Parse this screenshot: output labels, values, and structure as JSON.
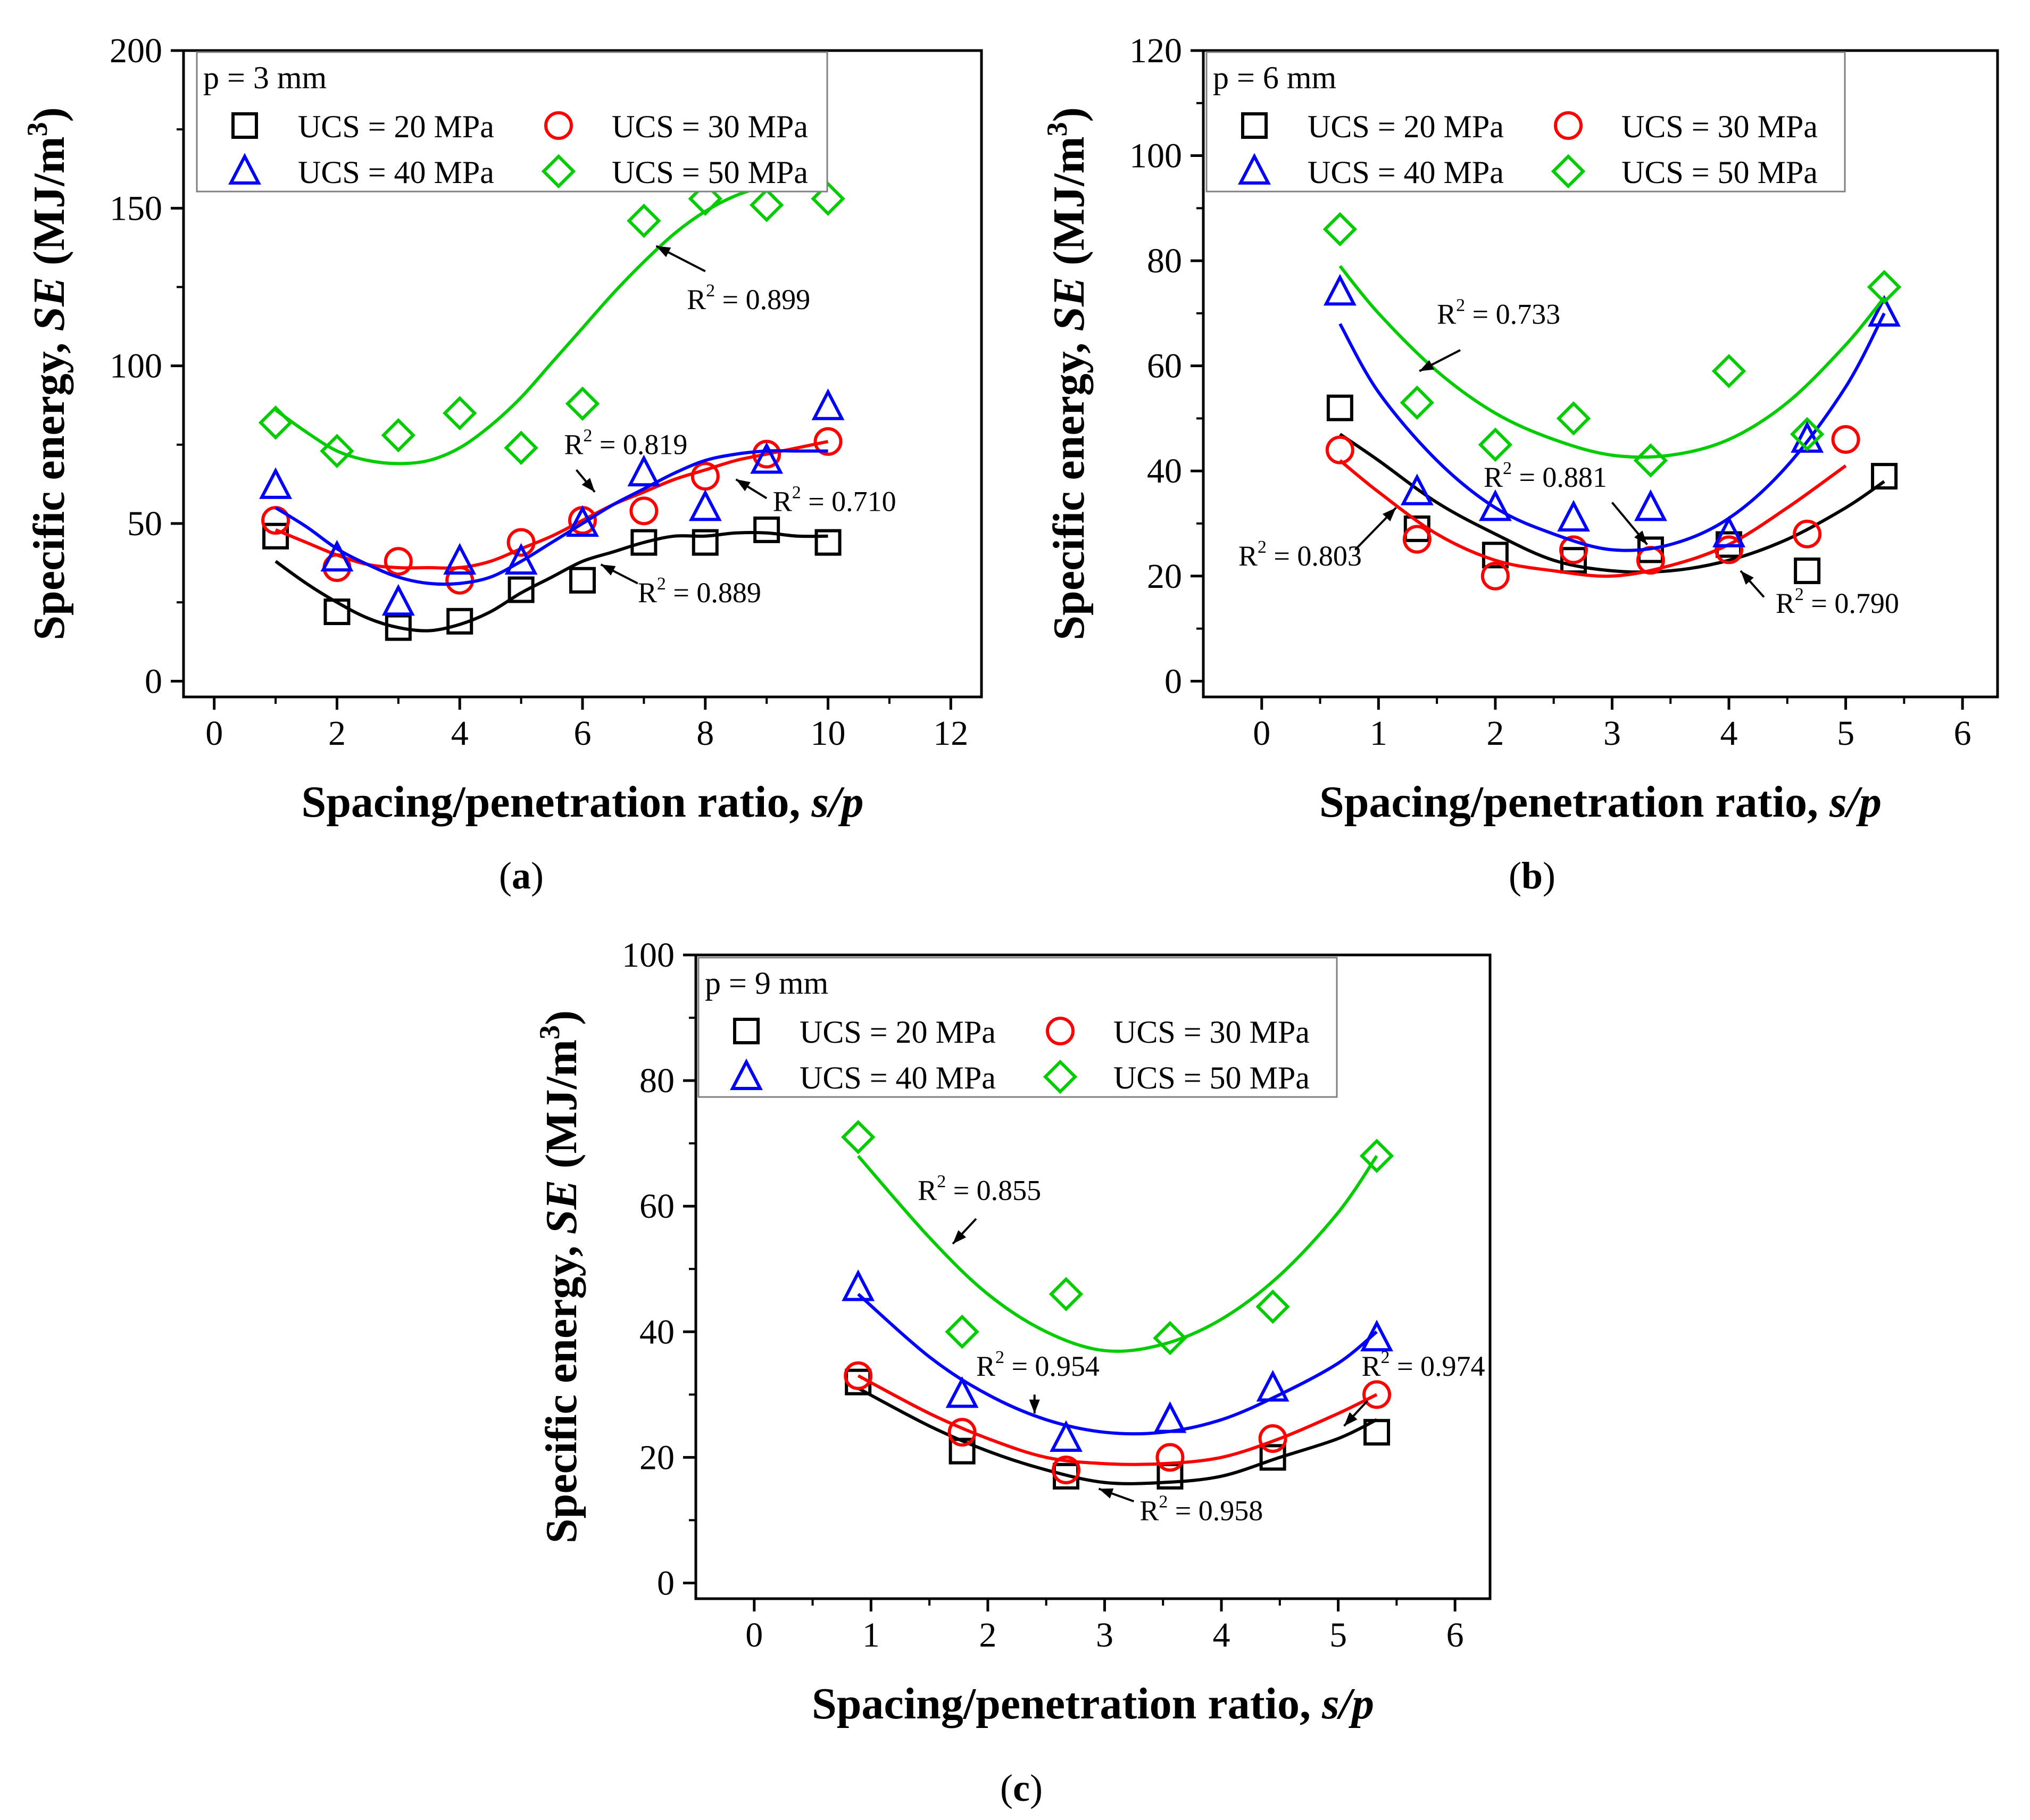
{
  "figure": {
    "y_label_prefix": "Specific energy, ",
    "y_label_italic": "SE",
    "y_label_unit": " (MJ/m",
    "y_label_exp": "3",
    "y_label_close": ")",
    "x_label_prefix": "Spacing/penetration ratio, ",
    "x_label_italic": "s/p"
  },
  "colors": {
    "UCS = 20 MPa": "#000000",
    "UCS = 30 MPa": "#ff0000",
    "UCS = 40 MPa": "#0000ff",
    "UCS = 50 MPa": "#00cc00"
  },
  "chart_data": [
    {
      "type": "scatter",
      "caption": "a",
      "legend_title": "p = 3 mm",
      "xlim": [
        -0.5,
        12.5
      ],
      "ylim": [
        -5,
        200
      ],
      "xticks": [
        0,
        2,
        4,
        6,
        8,
        10,
        12
      ],
      "yticks": [
        0,
        50,
        100,
        150,
        200
      ],
      "series": [
        {
          "name": "UCS = 20 MPa",
          "marker": "square",
          "x": [
            1,
            2,
            3,
            4,
            5,
            6,
            7,
            8,
            9,
            10
          ],
          "y": [
            46,
            22,
            17,
            19,
            29,
            32,
            44,
            44,
            48,
            44
          ],
          "fit": {
            "x": [
              1,
              1.5,
              2,
              2.5,
              3,
              3.5,
              4,
              4.5,
              5,
              5.5,
              6,
              6.5,
              7,
              7.5,
              8,
              8.5,
              9,
              9.5,
              10
            ],
            "y": [
              38,
              31,
              25,
              20,
              17,
              16,
              18,
              22,
              28,
              33,
              38,
              41,
              44,
              46,
              46,
              47,
              47,
              46,
              46
            ]
          }
        },
        {
          "name": "UCS = 30 MPa",
          "marker": "circle",
          "x": [
            1,
            2,
            3,
            4,
            5,
            6,
            7,
            8,
            9,
            10
          ],
          "y": [
            51,
            36,
            38,
            32,
            44,
            51,
            54,
            65,
            72,
            76
          ],
          "fit": {
            "x": [
              1,
              1.5,
              2,
              2.5,
              3,
              3.5,
              4,
              4.5,
              5,
              5.5,
              6,
              6.5,
              7,
              7.5,
              8,
              8.5,
              9,
              9.5,
              10
            ],
            "y": [
              48,
              44,
              40,
              37,
              36,
              36,
              36,
              38,
              42,
              46,
              51,
              56,
              60,
              64,
              67,
              70,
              72,
              74,
              76
            ]
          }
        },
        {
          "name": "UCS = 40 MPa",
          "marker": "triangle",
          "x": [
            1,
            2,
            3,
            4,
            5,
            6,
            7,
            8,
            9,
            10
          ],
          "y": [
            62,
            39,
            25,
            38,
            38,
            50,
            66,
            55,
            70,
            87
          ],
          "fit": {
            "x": [
              1,
              1.5,
              2,
              2.5,
              3,
              3.5,
              4,
              4.5,
              5,
              5.5,
              6,
              6.5,
              7,
              7.5,
              8,
              8.5,
              9,
              9.5,
              10
            ],
            "y": [
              55,
              49,
              42,
              37,
              33,
              31,
              31,
              33,
              38,
              44,
              50,
              56,
              61,
              66,
              70,
              72,
              73,
              73,
              73
            ]
          }
        },
        {
          "name": "UCS = 50 MPa",
          "marker": "diamond",
          "x": [
            1,
            2,
            3,
            4,
            5,
            6,
            7,
            8,
            9,
            10
          ],
          "y": [
            82,
            73,
            78,
            85,
            74,
            88,
            146,
            153,
            151,
            153
          ],
          "fit": {
            "x": [
              1,
              1.5,
              2,
              2.5,
              3,
              3.5,
              4,
              4.5,
              5,
              5.5,
              6,
              6.5,
              7,
              7.5,
              8,
              8.5,
              9,
              9.5,
              10
            ],
            "y": [
              86,
              79,
              73,
              70,
              69,
              70,
              74,
              81,
              90,
              101,
              112,
              123,
              133,
              142,
              149,
              154,
              157,
              158,
              159
            ]
          }
        }
      ],
      "annotations": [
        {
          "text": "R",
          "exp": "2",
          "rest": " = 0.899",
          "tx": 7.7,
          "ty": 118,
          "ax": 8.0,
          "ay": 130,
          "hx": 7.2,
          "hy": 138
        },
        {
          "text": "R",
          "exp": "2",
          "rest": " = 0.819",
          "tx": 5.7,
          "ty": 72,
          "ax": 5.9,
          "ay": 67,
          "hx": 6.2,
          "hy": 60
        },
        {
          "text": "R",
          "exp": "2",
          "rest": " = 0.710",
          "tx": 9.1,
          "ty": 54,
          "ax": 9.0,
          "ay": 58,
          "hx": 8.5,
          "hy": 64
        },
        {
          "text": "R",
          "exp": "2",
          "rest": " = 0.889",
          "tx": 6.9,
          "ty": 25,
          "ax": 6.9,
          "ay": 31,
          "hx": 6.3,
          "hy": 37
        }
      ]
    },
    {
      "type": "scatter",
      "caption": "b",
      "legend_title": "p = 6 mm",
      "xlim": [
        -0.5,
        6.3
      ],
      "ylim": [
        -3,
        120
      ],
      "xticks": [
        0,
        1,
        2,
        3,
        4,
        5,
        6
      ],
      "yticks": [
        0,
        20,
        40,
        60,
        80,
        100,
        120
      ],
      "series": [
        {
          "name": "UCS = 20 MPa",
          "marker": "square",
          "x": [
            0.67,
            1.33,
            2,
            2.67,
            3.33,
            4,
            4.67,
            5.33
          ],
          "y": [
            52,
            29,
            24,
            23,
            25,
            26,
            21,
            39
          ],
          "fit": {
            "x": [
              0.67,
              1,
              1.5,
              2,
              2.5,
              3,
              3.5,
              4,
              4.5,
              5,
              5.33
            ],
            "y": [
              47,
              42,
              34,
              28,
              23,
              21,
              21,
              23,
              27,
              33,
              38
            ]
          }
        },
        {
          "name": "UCS = 30 MPa",
          "marker": "circle",
          "x": [
            0.67,
            1.33,
            2,
            2.67,
            3.33,
            4,
            4.67,
            5
          ],
          "y": [
            44,
            27,
            20,
            25,
            23,
            25,
            28,
            46
          ],
          "fit": {
            "x": [
              0.67,
              1,
              1.5,
              2,
              2.5,
              3,
              3.5,
              4,
              4.5,
              5
            ],
            "y": [
              42,
              36,
              28,
              23,
              21,
              20,
              22,
              26,
              33,
              41
            ]
          }
        },
        {
          "name": "UCS = 40 MPa",
          "marker": "triangle",
          "x": [
            0.67,
            1.33,
            2,
            2.67,
            3.33,
            4,
            4.67,
            5.33
          ],
          "y": [
            74,
            36,
            33,
            31,
            33,
            28,
            46,
            70
          ],
          "fit": {
            "x": [
              0.67,
              1,
              1.5,
              2,
              2.5,
              3,
              3.5,
              4,
              4.5,
              5,
              5.33
            ],
            "y": [
              68,
              55,
              42,
              33,
              28,
              25,
              26,
              31,
              41,
              56,
              70
            ]
          }
        },
        {
          "name": "UCS = 50 MPa",
          "marker": "diamond",
          "x": [
            0.67,
            1.33,
            2,
            2.67,
            3.33,
            4,
            4.67,
            5.33
          ],
          "y": [
            86,
            53,
            45,
            50,
            42,
            59,
            47,
            75
          ],
          "fit": {
            "x": [
              0.67,
              1,
              1.5,
              2,
              2.5,
              3,
              3.5,
              4,
              4.5,
              5,
              5.33
            ],
            "y": [
              79,
              70,
              59,
              51,
              46,
              43,
              43,
              46,
              53,
              64,
              73
            ]
          }
        }
      ],
      "annotations": [
        {
          "text": "R",
          "exp": "2",
          "rest": " = 0.733",
          "tx": 1.5,
          "ty": 68,
          "ax": 1.7,
          "ay": 63,
          "hx": 1.35,
          "hy": 59
        },
        {
          "text": "R",
          "exp": "2",
          "rest": " = 0.881",
          "tx": 1.9,
          "ty": 37,
          "ax": 3.0,
          "ay": 34,
          "hx": 3.3,
          "hy": 26
        },
        {
          "text": "R",
          "exp": "2",
          "rest": " = 0.803",
          "tx": -0.2,
          "ty": 22,
          "ax": 0.8,
          "ay": 25,
          "hx": 1.15,
          "hy": 33
        },
        {
          "text": "R",
          "exp": "2",
          "rest": " = 0.790",
          "tx": 4.4,
          "ty": 13,
          "ax": 4.3,
          "ay": 16,
          "hx": 4.1,
          "hy": 21
        }
      ]
    },
    {
      "type": "scatter",
      "caption": "c",
      "legend_title": "p = 9 mm",
      "xlim": [
        -0.5,
        6.3
      ],
      "ylim": [
        -2.5,
        100
      ],
      "xticks": [
        0,
        1,
        2,
        3,
        4,
        5,
        6
      ],
      "yticks": [
        0,
        20,
        40,
        60,
        80,
        100
      ],
      "series": [
        {
          "name": "UCS = 20 MPa",
          "marker": "square",
          "x": [
            0.89,
            1.78,
            2.67,
            3.56,
            4.44,
            5.33
          ],
          "y": [
            32,
            21,
            17,
            17,
            20,
            24
          ],
          "fit": {
            "x": [
              0.89,
              1.5,
              2,
              2.5,
              3,
              3.5,
              4,
              4.5,
              5,
              5.33
            ],
            "y": [
              31,
              25,
              21,
              18,
              16,
              16,
              17,
              20,
              23,
              26
            ]
          }
        },
        {
          "name": "UCS = 30 MPa",
          "marker": "circle",
          "x": [
            0.89,
            1.78,
            2.67,
            3.56,
            4.44,
            5.33
          ],
          "y": [
            33,
            24,
            18,
            20,
            23,
            30
          ],
          "fit": {
            "x": [
              0.89,
              1.5,
              2,
              2.5,
              3,
              3.5,
              4,
              4.5,
              5,
              5.33
            ],
            "y": [
              33,
              27,
              23,
              20,
              19,
              19,
              20,
              23,
              27,
              30
            ]
          }
        },
        {
          "name": "UCS = 40 MPa",
          "marker": "triangle",
          "x": [
            0.89,
            1.78,
            2.67,
            3.56,
            4.44,
            5.33
          ],
          "y": [
            47,
            30,
            23,
            26,
            31,
            39
          ],
          "fit": {
            "x": [
              0.89,
              1.5,
              2,
              2.5,
              3,
              3.5,
              4,
              4.5,
              5,
              5.33
            ],
            "y": [
              46,
              36,
              30,
              26,
              24,
              24,
              26,
              30,
              35,
              40
            ]
          }
        },
        {
          "name": "UCS = 50 MPa",
          "marker": "diamond",
          "x": [
            0.89,
            1.78,
            2.67,
            3.56,
            4.44,
            5.33
          ],
          "y": [
            71,
            40,
            46,
            39,
            44,
            68
          ],
          "fit": {
            "x": [
              0.89,
              1.5,
              2,
              2.5,
              3,
              3.5,
              4,
              4.5,
              5,
              5.33
            ],
            "y": [
              68,
              55,
              46,
              40,
              37,
              38,
              42,
              49,
              59,
              68
            ]
          }
        }
      ],
      "annotations": [
        {
          "text": "R",
          "exp": "2",
          "rest": " = 0.855",
          "tx": 1.4,
          "ty": 61,
          "ax": 1.9,
          "ay": 58,
          "hx": 1.7,
          "hy": 54
        },
        {
          "text": "R",
          "exp": "2",
          "rest": " = 0.954",
          "tx": 1.9,
          "ty": 33,
          "ax": 2.4,
          "ay": 30,
          "hx": 2.4,
          "hy": 27
        },
        {
          "text": "R",
          "exp": "2",
          "rest": " = 0.974",
          "tx": 5.2,
          "ty": 33,
          "ax": 5.25,
          "ay": 29,
          "hx": 5.05,
          "hy": 25
        },
        {
          "text": "R",
          "exp": "2",
          "rest": " = 0.958",
          "tx": 3.3,
          "ty": 10,
          "ax": 3.25,
          "ay": 13,
          "hx": 2.95,
          "hy": 15
        }
      ]
    }
  ]
}
